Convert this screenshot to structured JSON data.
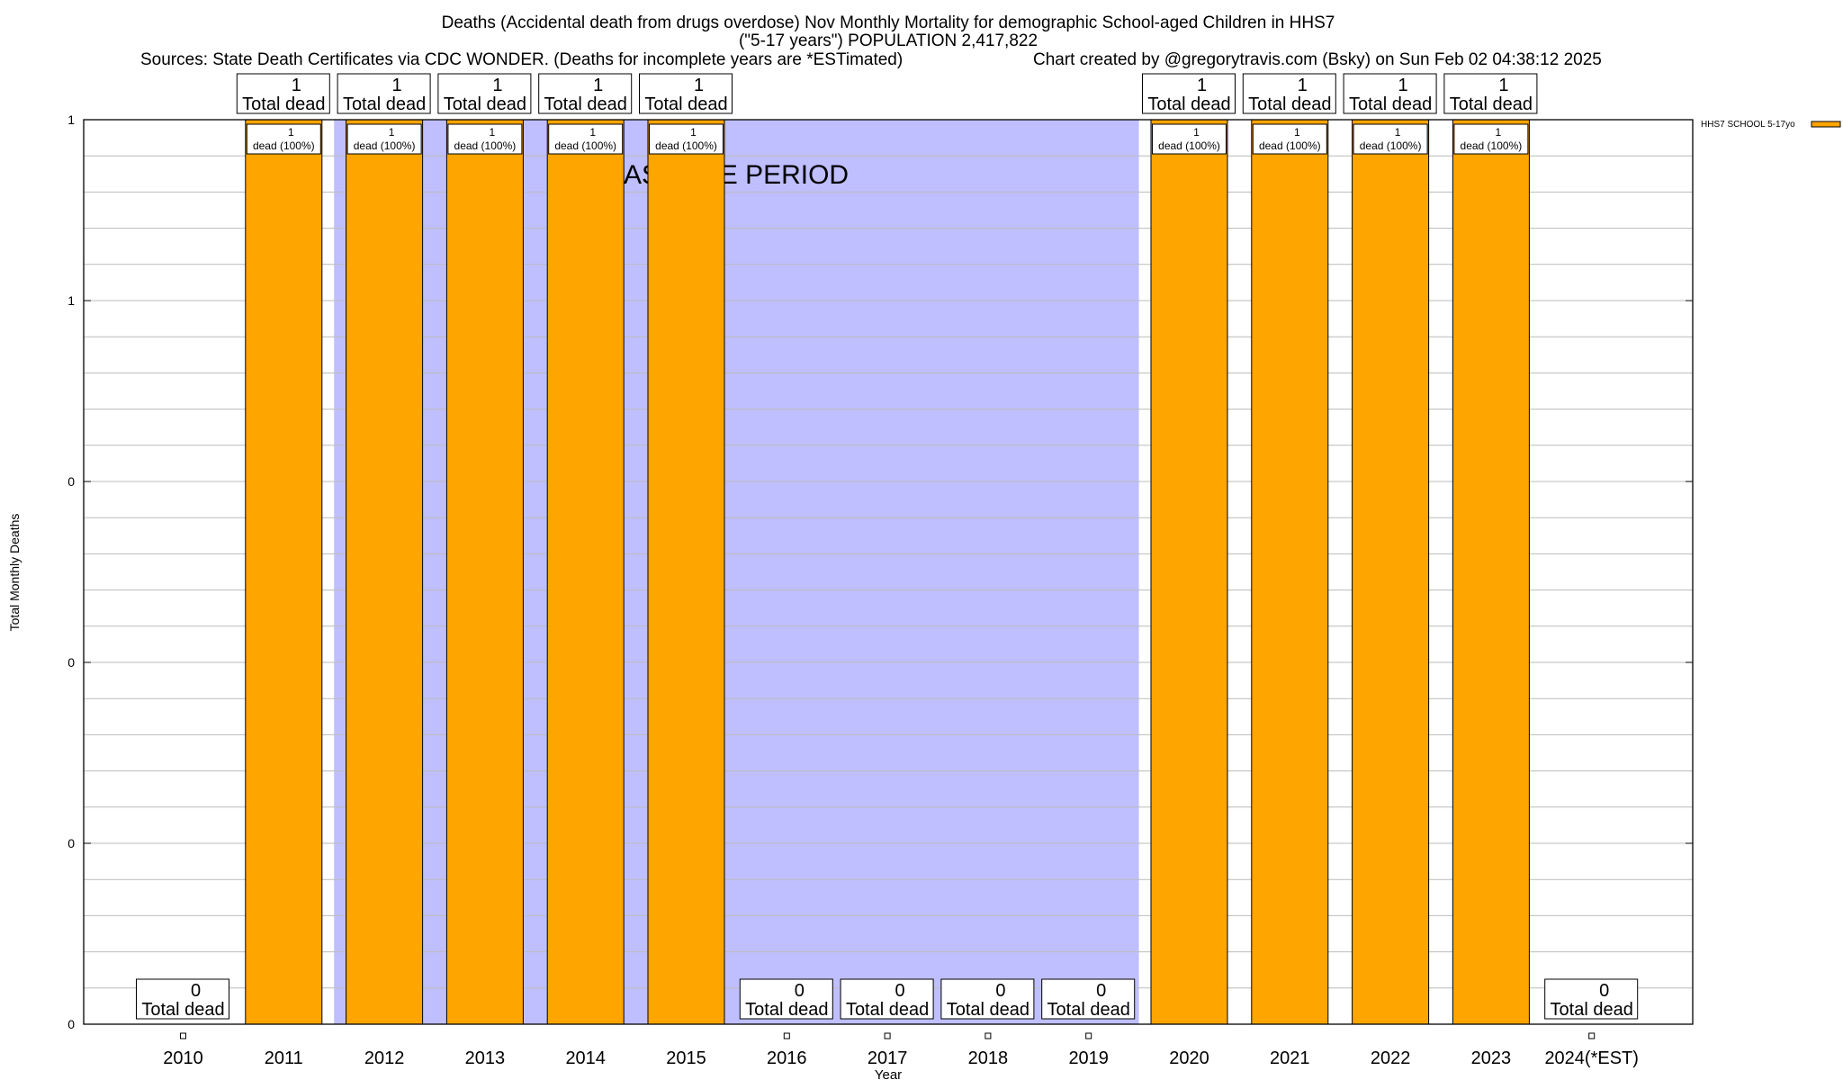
{
  "chart_data": {
    "type": "bar",
    "title_lines": [
      "Deaths (Accidental death from drugs overdose) Nov Monthly Mortality for demographic School-aged Children in HHS7",
      "(\"5-17 years\") POPULATION 2,417,822"
    ],
    "sources": "Sources: State Death Certificates via CDC WONDER. (Deaths for incomplete years are *ESTimated)",
    "credit": "Chart created by @gregorytravis.com (Bsky) on Sun Feb 02 04:38:12 2025",
    "xlabel": "Year",
    "ylabel": "Total Monthly Deaths",
    "ylim": [
      0,
      1
    ],
    "ytick_values": [
      0,
      0.2,
      0.4,
      0.6,
      0.8,
      1
    ],
    "ytick_labels": [
      "0",
      "0",
      "0",
      "0",
      "1",
      "1"
    ],
    "minor_grid_step": 0.04,
    "grid": true,
    "categories": [
      "2010",
      "2011",
      "2012",
      "2013",
      "2014",
      "2015",
      "2016",
      "2017",
      "2018",
      "2019",
      "2020",
      "2021",
      "2022",
      "2023",
      "2024(*EST)"
    ],
    "series": [
      {
        "name": "HHS7 SCHOOL 5-17yo",
        "color": "#FFA500",
        "values": [
          0,
          1,
          1,
          1,
          1,
          1,
          0,
          0,
          0,
          0,
          1,
          1,
          1,
          1,
          0
        ]
      }
    ],
    "total_label_suffix": "Total dead",
    "bar_label_suffix": "dead (100%)",
    "baseline": {
      "label": "BASELINE PERIOD",
      "from_index": 1.5,
      "to_index": 9.5,
      "color": "#BFBFFF"
    },
    "legend_position": "top-right"
  }
}
